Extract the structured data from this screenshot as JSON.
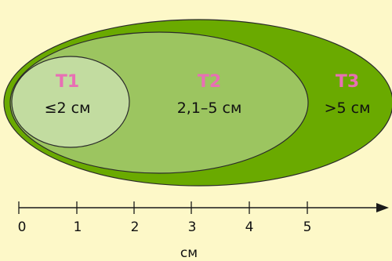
{
  "stages": [
    {
      "label": "T1",
      "range": "≤2 см"
    },
    {
      "label": "T2",
      "range": "2,1–5 см"
    },
    {
      "label": "T3",
      "range": ">5 см"
    }
  ],
  "axis": {
    "ticks": [
      "0",
      "1",
      "2",
      "3",
      "4",
      "5"
    ],
    "unit": "см"
  },
  "colors": {
    "background": "#fdf8c8",
    "t3_fill": "#6aaa00",
    "t2_fill": "#9cc560",
    "t1_fill": "#c2dca0",
    "label_pink": "#e86fb4",
    "outline": "#2a2a2a"
  }
}
